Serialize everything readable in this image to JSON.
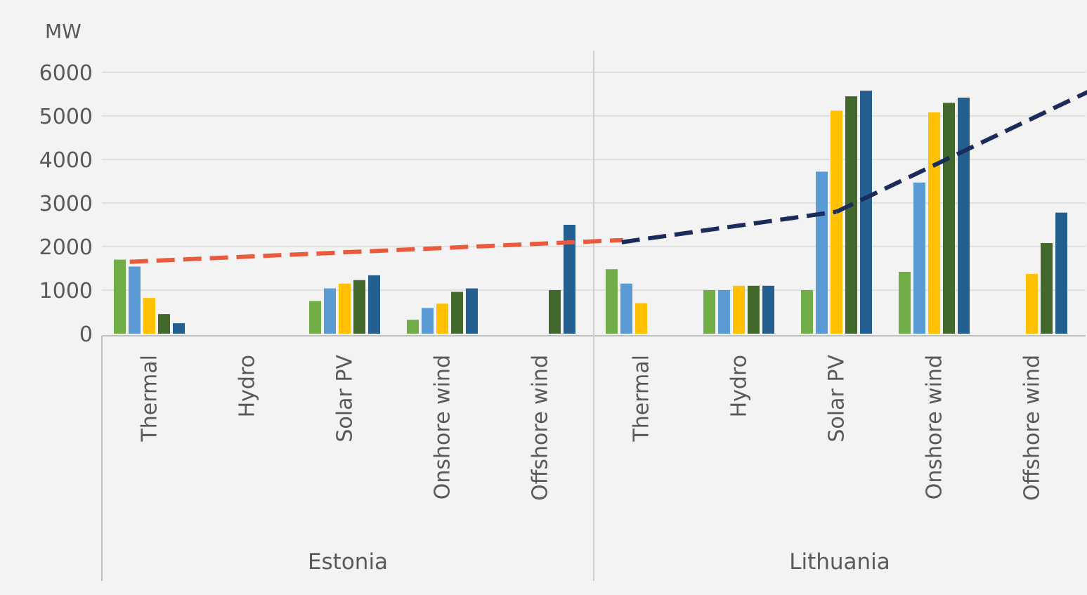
{
  "chart_data": {
    "type": "bar",
    "ylabel": "MW",
    "ylim": [
      0,
      6000
    ],
    "yticks": [
      0,
      1000,
      2000,
      3000,
      4000,
      5000,
      6000
    ],
    "grid": true,
    "groups": [
      {
        "name": "Estonia",
        "categories": [
          {
            "label": "Thermal",
            "values": [
              1700,
              1540,
              820,
              450,
              240
            ]
          },
          {
            "label": "Hydro",
            "values": [
              0,
              0,
              0,
              0,
              0
            ]
          },
          {
            "label": "Solar PV",
            "values": [
              750,
              1040,
              1150,
              1230,
              1340
            ]
          },
          {
            "label": "Onshore wind",
            "values": [
              320,
              590,
              690,
              960,
              1040
            ]
          },
          {
            "label": "Offshore wind",
            "values": [
              0,
              0,
              0,
              1000,
              2500
            ]
          }
        ]
      },
      {
        "name": "Lithuania",
        "categories": [
          {
            "label": "Thermal",
            "values": [
              1480,
              1150,
              700,
              0,
              0
            ]
          },
          {
            "label": "Hydro",
            "values": [
              1000,
              1000,
              1100,
              1100,
              1100
            ]
          },
          {
            "label": "Solar PV",
            "values": [
              1000,
              3720,
              5120,
              5450,
              5580
            ]
          },
          {
            "label": "Onshore wind",
            "values": [
              1420,
              3470,
              5080,
              5300,
              5420
            ]
          },
          {
            "label": "Offshore wind",
            "values": [
              0,
              0,
              1370,
              2080,
              2780
            ]
          }
        ]
      }
    ],
    "series_colors": [
      "#70ad47",
      "#5b9bd5",
      "#ffc000",
      "#43682b",
      "#255e91"
    ],
    "trend_lines": [
      {
        "color": "#ea5a3d",
        "style": "dashed",
        "from": {
          "group": 0,
          "category_index": -0.2,
          "y": 1650
        },
        "to": {
          "group": 0,
          "category_index": 4.85,
          "y": 2150
        }
      },
      {
        "color": "#1b2c5c",
        "style": "dashed",
        "from": {
          "group": 1,
          "category_index": -0.2,
          "y": 2100
        },
        "to": {
          "group": 1,
          "category_index": 2.0,
          "y": 2800
        }
      },
      {
        "color": "#1b2c5c",
        "style": "dashed",
        "from": {
          "group": 1,
          "category_index": 2.0,
          "y": 2800
        },
        "to": {
          "group": 1,
          "category_index": 4.9,
          "y": 5900
        }
      }
    ]
  }
}
